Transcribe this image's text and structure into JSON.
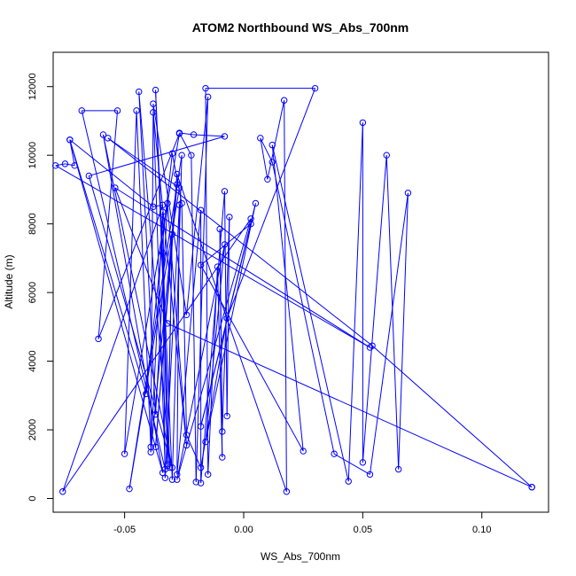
{
  "chart_data": {
    "type": "line",
    "title": "ATOM2 Northbound WS_Abs_700nm",
    "xlabel": "WS_Abs_700nm",
    "ylabel": "Altitude (m)",
    "xlim": [
      -0.08,
      0.128
    ],
    "ylim": [
      -400,
      13000
    ],
    "x_ticks": [
      -0.05,
      0.0,
      0.05,
      0.1
    ],
    "x_tick_labels": [
      "-0.05",
      "0.00",
      "0.05",
      "0.10"
    ],
    "y_ticks": [
      0,
      2000,
      4000,
      6000,
      8000,
      10000,
      12000
    ],
    "y_tick_labels": [
      "0",
      "2000",
      "4000",
      "6000",
      "8000",
      "10000",
      "12000"
    ],
    "grid": false,
    "series": [
      {
        "color": "#0000ff",
        "marker": "open-circle",
        "points": [
          [
            0.121,
            330
          ],
          [
            0.054,
            4450
          ],
          [
            -0.057,
            10500
          ],
          [
            -0.027,
            9050
          ],
          [
            -0.048,
            280
          ],
          [
            -0.026,
            10000
          ],
          [
            -0.03,
            550
          ],
          [
            -0.037,
            11900
          ],
          [
            -0.031,
            900
          ],
          [
            -0.044,
            11850
          ],
          [
            -0.037,
            2450
          ],
          [
            -0.032,
            8600
          ],
          [
            -0.024,
            1550
          ],
          [
            -0.038,
            11250
          ],
          [
            -0.039,
            1500
          ],
          [
            -0.045,
            11300
          ],
          [
            -0.05,
            1300
          ],
          [
            -0.027,
            10630
          ],
          [
            -0.061,
            4650
          ],
          [
            -0.053,
            11300
          ],
          [
            -0.068,
            11300
          ],
          [
            -0.033,
            850
          ],
          [
            -0.038,
            11500
          ],
          [
            -0.024,
            5350
          ],
          [
            -0.015,
            11700
          ],
          [
            -0.02,
            480
          ],
          [
            -0.022,
            10000
          ],
          [
            -0.027,
            10650
          ],
          [
            -0.021,
            10600
          ],
          [
            -0.008,
            10550
          ],
          [
            -0.065,
            9400
          ],
          [
            -0.03,
            900
          ],
          [
            -0.059,
            10600
          ],
          [
            -0.034,
            750
          ],
          [
            -0.073,
            10450
          ],
          [
            -0.038,
            8500
          ],
          [
            -0.034,
            8550
          ],
          [
            -0.076,
            200
          ],
          [
            0.003,
            8150
          ],
          [
            -0.028,
            550
          ],
          [
            -0.008,
            7400
          ],
          [
            -0.016,
            1650
          ],
          [
            0.005,
            8600
          ],
          [
            -0.018,
            2100
          ],
          [
            0.003,
            8000
          ],
          [
            -0.018,
            6800
          ],
          [
            0.025,
            1380
          ],
          [
            0.012,
            10300
          ],
          [
            0.044,
            500
          ],
          [
            0.05,
            10950
          ],
          [
            0.05,
            1050
          ],
          [
            0.06,
            10000
          ],
          [
            0.065,
            850
          ],
          [
            0.069,
            8900
          ],
          [
            0.053,
            700
          ],
          [
            0.038,
            1300
          ],
          [
            0.012,
            9800
          ],
          [
            0.007,
            10500
          ],
          [
            0.01,
            9300
          ],
          [
            0.017,
            11600
          ],
          [
            0.018,
            200
          ],
          [
            -0.028,
            9450
          ],
          [
            -0.037,
            1500
          ],
          [
            -0.028,
            9150
          ],
          [
            -0.039,
            1350
          ],
          [
            -0.034,
            8350
          ],
          [
            -0.032,
            1000
          ],
          [
            -0.03,
            7700
          ],
          [
            -0.032,
            950
          ],
          [
            -0.034,
            7150
          ],
          [
            -0.033,
            600
          ],
          [
            -0.027,
            8550
          ],
          [
            -0.028,
            700
          ],
          [
            -0.018,
            8400
          ],
          [
            -0.018,
            450
          ],
          [
            -0.008,
            8950
          ],
          [
            -0.007,
            2400
          ],
          [
            -0.006,
            8200
          ],
          [
            -0.009,
            1950
          ],
          [
            -0.01,
            7850
          ],
          [
            -0.009,
            1200
          ],
          [
            -0.011,
            6750
          ],
          [
            -0.015,
            700
          ],
          [
            -0.016,
            11950
          ],
          [
            0.03,
            11950
          ],
          [
            -0.007,
            5250
          ],
          [
            -0.018,
            900
          ],
          [
            -0.024,
            1850
          ],
          [
            -0.026,
            8600
          ],
          [
            -0.03,
            10050
          ],
          [
            -0.041,
            3050
          ],
          [
            -0.073,
            10450
          ],
          [
            -0.071,
            9700
          ],
          [
            -0.075,
            9750
          ],
          [
            -0.079,
            9700
          ],
          [
            0.053,
            4400
          ],
          [
            -0.054,
            9050
          ],
          [
            -0.032,
            5100
          ],
          [
            0.121,
            330
          ]
        ]
      }
    ]
  }
}
